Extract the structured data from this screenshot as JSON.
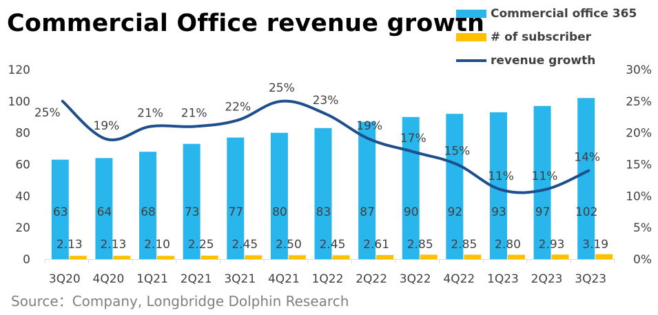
{
  "title": "Commercial Office revenue growth",
  "source": "Source：Company, Longbridge Dolphin Research",
  "colors": {
    "revenue": "#29B6EC",
    "subscribers": "#FFC000",
    "growth": "#1F4E8C"
  },
  "chart_data": {
    "type": "bar+line",
    "categories": [
      "3Q20",
      "4Q20",
      "1Q21",
      "2Q21",
      "3Q21",
      "4Q21",
      "1Q22",
      "2Q22",
      "3Q22",
      "4Q22",
      "1Q23",
      "2Q23",
      "3Q23"
    ],
    "series": [
      {
        "name": "Commercial office 365",
        "type": "bar",
        "axis": "left",
        "values": [
          63,
          64,
          68,
          73,
          77,
          80,
          83,
          87,
          90,
          92,
          93,
          97,
          102
        ]
      },
      {
        "name": "# of subscriber",
        "type": "bar",
        "axis": "left",
        "values": [
          2.13,
          2.13,
          2.1,
          2.25,
          2.45,
          2.5,
          2.45,
          2.61,
          2.85,
          2.85,
          2.8,
          2.93,
          3.19
        ],
        "labels": [
          "2.13",
          "2.13",
          "2.10",
          "2.25",
          "2.45",
          "2.50",
          "2.45",
          "2.61",
          "2.85",
          "2.85",
          "2.80",
          "2.93",
          "3.19"
        ]
      },
      {
        "name": "revenue growth",
        "type": "line",
        "axis": "right",
        "values": [
          25,
          19,
          21,
          21,
          22,
          25,
          23,
          19,
          17,
          15,
          11,
          11,
          14
        ],
        "labels": [
          "25%",
          "19%",
          "21%",
          "21%",
          "22%",
          "25%",
          "23%",
          "19%",
          "17%",
          "15%",
          "11%",
          "11%",
          "14%"
        ]
      }
    ],
    "y_left": {
      "min": 0,
      "max": 120,
      "ticks": [
        "0",
        "20",
        "40",
        "60",
        "80",
        "100",
        "120"
      ]
    },
    "y_right": {
      "min": 0,
      "max": 30,
      "ticks": [
        "0%",
        "5%",
        "10%",
        "15%",
        "20%",
        "25%",
        "30%"
      ]
    },
    "legend_position": "top-right",
    "grid": false
  }
}
